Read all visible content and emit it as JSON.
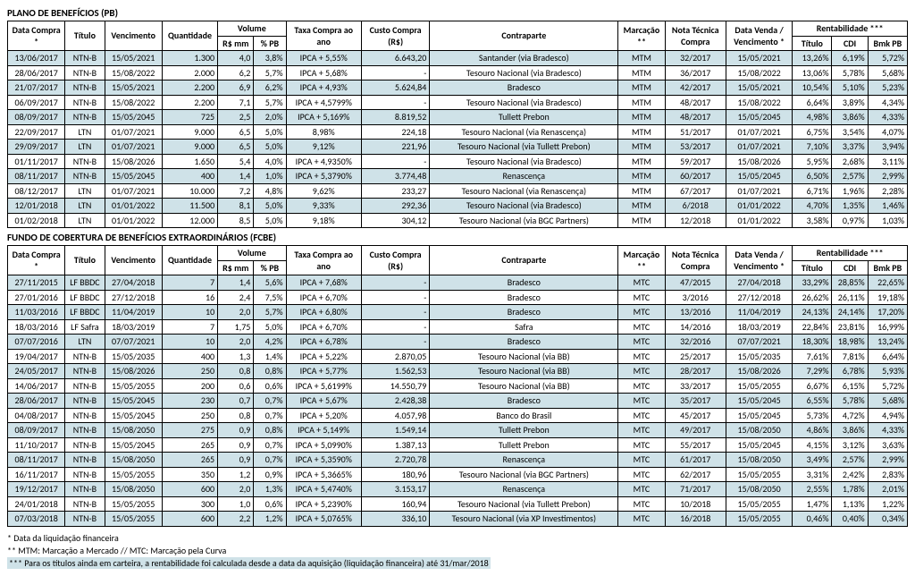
{
  "colors": {
    "row_alt_bg": "#cfe2e8",
    "border": "#000000",
    "background": "#ffffff",
    "text": "#000000"
  },
  "sections": [
    {
      "title": "PLANO DE BENEFÍCIOS (PB)",
      "columns": [
        {
          "key": "data_compra",
          "label": "Data Compra *",
          "rowspan": 2,
          "width": "64"
        },
        {
          "key": "titulo",
          "label": "Título",
          "rowspan": 2,
          "width": "44"
        },
        {
          "key": "vencimento",
          "label": "Vencimento",
          "rowspan": 2,
          "width": "64"
        },
        {
          "key": "quantidade",
          "label": "Quantidade",
          "rowspan": 2,
          "width": "62"
        },
        {
          "key": "volume",
          "label": "Volume",
          "colspan": 2,
          "children": [
            {
              "key": "rs_mm",
              "label": "R$ mm",
              "width": "40"
            },
            {
              "key": "pct_pb",
              "label": "% PB",
              "width": "36"
            }
          ]
        },
        {
          "key": "taxa_compra",
          "label": "Taxa Compra ao ano",
          "rowspan": 2,
          "width": "84"
        },
        {
          "key": "custo_compra",
          "label": "Custo Compra (R$)",
          "rowspan": 2,
          "width": "76"
        },
        {
          "key": "contraparte",
          "label": "Contraparte",
          "rowspan": 2,
          "width": "210"
        },
        {
          "key": "marcacao",
          "label": "Marcação **",
          "rowspan": 2,
          "width": "52"
        },
        {
          "key": "nota_tecnica",
          "label": "Nota Técnica Compra",
          "rowspan": 2,
          "width": "68"
        },
        {
          "key": "data_venda",
          "label": "Data Venda / Vencimento *",
          "rowspan": 2,
          "width": "74"
        },
        {
          "key": "rentabilidade",
          "label": "Rentabilidade ***",
          "colspan": 3,
          "children": [
            {
              "key": "r_titulo",
              "label": "Título",
              "width": "44"
            },
            {
              "key": "r_cdi",
              "label": "CDI",
              "width": "40"
            },
            {
              "key": "r_bmk",
              "label": "Bmk PB",
              "width": "44"
            }
          ]
        }
      ],
      "rows": [
        [
          "13/06/2017",
          "NTN-B",
          "15/05/2021",
          "1.300",
          "4,0",
          "3,8%",
          "IPCA + 5,55%",
          "6.643,20",
          "Santander (via Bradesco)",
          "MTM",
          "32/2017",
          "15/05/2021",
          "13,26%",
          "6,19%",
          "5,72%"
        ],
        [
          "28/06/2017",
          "NTN-B",
          "15/08/2022",
          "2.000",
          "6,2",
          "5,7%",
          "IPCA + 5,68%",
          "-",
          "Tesouro Nacional (via Bradesco)",
          "MTM",
          "36/2017",
          "15/08/2022",
          "13,06%",
          "5,78%",
          "5,68%"
        ],
        [
          "21/07/2017",
          "NTN-B",
          "15/05/2021",
          "2.200",
          "6,9",
          "6,2%",
          "IPCA + 4,93%",
          "5.624,84",
          "Bradesco",
          "MTM",
          "42/2017",
          "15/05/2021",
          "10,54%",
          "5,10%",
          "5,23%"
        ],
        [
          "06/09/2017",
          "NTN-B",
          "15/08/2022",
          "2.200",
          "7,1",
          "5,7%",
          "IPCA + 4,5799%",
          "-",
          "Tesouro Nacional (via Bradesco)",
          "MTM",
          "48/2017",
          "15/08/2022",
          "6,64%",
          "3,89%",
          "4,34%"
        ],
        [
          "08/09/2017",
          "NTN-B",
          "15/05/2045",
          "725",
          "2,5",
          "2,0%",
          "IPCA + 5,169%",
          "8.819,52",
          "Tullett Prebon",
          "MTM",
          "48/2017",
          "15/05/2045",
          "4,98%",
          "3,86%",
          "4,33%"
        ],
        [
          "22/09/2017",
          "LTN",
          "01/07/2021",
          "9.000",
          "6,5",
          "5,0%",
          "8,98%",
          "224,18",
          "Tesouro Nacional (via Renascença)",
          "MTM",
          "51/2017",
          "01/07/2021",
          "6,75%",
          "3,54%",
          "4,07%"
        ],
        [
          "29/09/2017",
          "LTN",
          "01/07/2021",
          "9.000",
          "6,5",
          "5,0%",
          "9,12%",
          "221,96",
          "Tesouro Nacional (via Tullett Prebon)",
          "MTM",
          "53/2017",
          "01/07/2021",
          "7,10%",
          "3,37%",
          "3,94%"
        ],
        [
          "01/11/2017",
          "NTN-B",
          "15/08/2026",
          "1.650",
          "5,4",
          "4,0%",
          "IPCA + 4,9350%",
          "-",
          "Tesouro Nacional (via Bradesco)",
          "MTM",
          "59/2017",
          "15/08/2026",
          "5,95%",
          "2,68%",
          "3,11%"
        ],
        [
          "08/11/2017",
          "NTN-B",
          "15/05/2045",
          "400",
          "1,4",
          "1,0%",
          "IPCA + 5,3790%",
          "3.774,48",
          "Renascença",
          "MTM",
          "60/2017",
          "15/05/2045",
          "6,50%",
          "2,57%",
          "2,99%"
        ],
        [
          "08/12/2017",
          "LTN",
          "01/07/2021",
          "10.000",
          "7,2",
          "4,8%",
          "9,62%",
          "233,27",
          "Tesouro Nacional (via Renascença)",
          "MTM",
          "67/2017",
          "01/07/2021",
          "6,71%",
          "1,96%",
          "2,28%"
        ],
        [
          "12/01/2018",
          "LTN",
          "01/01/2022",
          "11.500",
          "8,1",
          "5,0%",
          "9,33%",
          "292,36",
          "Tesouro Nacional (via Bradesco)",
          "MTM",
          "6/2018",
          "01/01/2022",
          "4,70%",
          "1,35%",
          "1,46%"
        ],
        [
          "01/02/2018",
          "LTN",
          "01/01/2022",
          "12.000",
          "8,5",
          "5,0%",
          "9,18%",
          "304,12",
          "Tesouro Nacional (via BGC Partners)",
          "MTM",
          "12/2018",
          "01/01/2022",
          "3,58%",
          "0,97%",
          "1,03%"
        ]
      ]
    },
    {
      "title": "FUNDO DE COBERTURA DE BENEFÍCIOS EXTRAORDINÁRIOS (FCBE)",
      "columns": [
        {
          "key": "data_compra",
          "label": "Data Compra *",
          "rowspan": 2,
          "width": "64"
        },
        {
          "key": "titulo",
          "label": "Título",
          "rowspan": 2,
          "width": "44"
        },
        {
          "key": "vencimento",
          "label": "Vencimento",
          "rowspan": 2,
          "width": "64"
        },
        {
          "key": "quantidade",
          "label": "Quantidade",
          "rowspan": 2,
          "width": "62"
        },
        {
          "key": "volume",
          "label": "Volume",
          "colspan": 2,
          "children": [
            {
              "key": "rs_mm",
              "label": "R$ mm",
              "width": "40"
            },
            {
              "key": "pct_pb",
              "label": "% PB",
              "width": "36"
            }
          ]
        },
        {
          "key": "taxa_compra",
          "label": "Taxa Compra ao ano",
          "rowspan": 2,
          "width": "84"
        },
        {
          "key": "custo_compra",
          "label": "Custo Compra (R$)",
          "rowspan": 2,
          "width": "76"
        },
        {
          "key": "contraparte",
          "label": "Contraparte",
          "rowspan": 2,
          "width": "210"
        },
        {
          "key": "marcacao",
          "label": "Marcação **",
          "rowspan": 2,
          "width": "52"
        },
        {
          "key": "nota_tecnica",
          "label": "Nota Técnica Compra",
          "rowspan": 2,
          "width": "68"
        },
        {
          "key": "data_venda",
          "label": "Data Venda / Vencimento *",
          "rowspan": 2,
          "width": "74"
        },
        {
          "key": "rentabilidade",
          "label": "Rentabilidade ***",
          "colspan": 3,
          "children": [
            {
              "key": "r_titulo",
              "label": "Título",
              "width": "44"
            },
            {
              "key": "r_cdi",
              "label": "CDI",
              "width": "40"
            },
            {
              "key": "r_bmk",
              "label": "Bmk PB",
              "width": "44"
            }
          ]
        }
      ],
      "rows": [
        [
          "27/11/2015",
          "LF BBDC",
          "27/04/2018",
          "7",
          "1,4",
          "5,6%",
          "IPCA + 7,68%",
          "-",
          "Bradesco",
          "MTC",
          "47/2015",
          "27/04/2018",
          "33,29%",
          "28,85%",
          "22,65%"
        ],
        [
          "27/01/2016",
          "LF BBDC",
          "27/12/2018",
          "16",
          "2,4",
          "7,5%",
          "IPCA + 6,70%",
          "-",
          "Bradesco",
          "MTC",
          "3/2016",
          "27/12/2018",
          "26,62%",
          "26,11%",
          "19,18%"
        ],
        [
          "11/03/2016",
          "LF BBDC",
          "11/04/2019",
          "10",
          "2,0",
          "5,7%",
          "IPCA + 6,80%",
          "-",
          "Bradesco",
          "MTC",
          "13/2016",
          "11/04/2019",
          "24,13%",
          "24,14%",
          "17,20%"
        ],
        [
          "18/03/2016",
          "LF Safra",
          "18/03/2019",
          "7",
          "1,75",
          "5,0%",
          "IPCA + 6,70%",
          "-",
          "Safra",
          "MTC",
          "14/2016",
          "18/03/2019",
          "22,84%",
          "23,81%",
          "16,99%"
        ],
        [
          "07/07/2016",
          "LTN",
          "07/07/2021",
          "10",
          "2,0",
          "4,2%",
          "IPCA + 6,78%",
          "-",
          "Bradesco",
          "MTC",
          "32/2016",
          "07/07/2021",
          "18,30%",
          "18,98%",
          "13,24%"
        ],
        [
          "19/04/2017",
          "NTN-B",
          "15/05/2035",
          "400",
          "1,3",
          "1,4%",
          "IPCA + 5,22%",
          "2.870,05",
          "Tesouro Nacional (via BB)",
          "MTC",
          "25/2017",
          "15/05/2035",
          "7,61%",
          "7,81%",
          "6,64%"
        ],
        [
          "24/05/2017",
          "NTN-B",
          "15/08/2026",
          "250",
          "0,8",
          "0,8%",
          "IPCA + 5,77%",
          "1.562,53",
          "Tesouro Nacional (via BB)",
          "MTC",
          "28/2017",
          "15/08/2026",
          "7,29%",
          "6,78%",
          "5,93%"
        ],
        [
          "14/06/2017",
          "NTN-B",
          "15/05/2055",
          "200",
          "0,6",
          "0,6%",
          "IPCA + 5,6199%",
          "14.550,79",
          "Tesouro Nacional (via BB)",
          "MTC",
          "33/2017",
          "15/05/2055",
          "6,67%",
          "6,15%",
          "5,72%"
        ],
        [
          "28/06/2017",
          "NTN-B",
          "15/05/2045",
          "230",
          "0,7",
          "0,7%",
          "IPCA + 5,67%",
          "2.428,38",
          "Bradesco",
          "MTC",
          "35/2017",
          "15/05/2045",
          "6,55%",
          "5,78%",
          "5,68%"
        ],
        [
          "04/08/2017",
          "NTN-B",
          "15/05/2045",
          "250",
          "0,8",
          "0,7%",
          "IPCA + 5,20%",
          "4.057,98",
          "Banco do Brasil",
          "MTC",
          "45/2017",
          "15/05/2045",
          "5,73%",
          "4,72%",
          "4,94%"
        ],
        [
          "08/09/2017",
          "NTN-B",
          "15/08/2050",
          "275",
          "0,9",
          "0,8%",
          "IPCA + 5,149%",
          "1.549,14",
          "Tullett Prebon",
          "MTC",
          "49/2017",
          "15/08/2050",
          "4,86%",
          "3,86%",
          "4,33%"
        ],
        [
          "11/10/2017",
          "NTN-B",
          "15/05/2045",
          "265",
          "0,9",
          "0,7%",
          "IPCA + 5,0990%",
          "1.387,13",
          "Tullett Prebon",
          "MTC",
          "55/2017",
          "15/05/2045",
          "4,15%",
          "3,12%",
          "3,63%"
        ],
        [
          "08/11/2017",
          "NTN-B",
          "15/08/2050",
          "265",
          "0,9",
          "0,7%",
          "IPCA + 5,3590%",
          "2.720,78",
          "Renascença",
          "MTC",
          "61/2017",
          "15/08/2050",
          "3,49%",
          "2,57%",
          "2,99%"
        ],
        [
          "16/11/2017",
          "NTN-B",
          "15/05/2055",
          "350",
          "1,2",
          "0,9%",
          "IPCA + 5,3665%",
          "180,96",
          "Tesouro Nacional (via BGC Partners)",
          "MTC",
          "62/2017",
          "15/05/2055",
          "3,31%",
          "2,42%",
          "2,83%"
        ],
        [
          "19/12/2017",
          "NTN-B",
          "15/08/2050",
          "600",
          "2,0",
          "1,3%",
          "IPCA + 5,4740%",
          "3.153,17",
          "Renascença",
          "MTC",
          "71/2017",
          "15/08/2050",
          "2,55%",
          "1,78%",
          "2,01%"
        ],
        [
          "24/01/2018",
          "NTN-B",
          "15/05/2055",
          "300",
          "1,0",
          "0,6%",
          "IPCA + 5,2390%",
          "160,94",
          "Tesouro Nacional (via Tullett Prebon)",
          "MTC",
          "10/2018",
          "15/05/2055",
          "1,47%",
          "1,13%",
          "1,22%"
        ],
        [
          "07/03/2018",
          "NTN-B",
          "15/05/2055",
          "600",
          "2,2",
          "1,2%",
          "IPCA + 5,0765%",
          "336,10",
          "Tesouro Nacional (via XP Investimentos)",
          "MTC",
          "16/2018",
          "15/05/2055",
          "0,46%",
          "0,40%",
          "0,34%"
        ]
      ]
    }
  ],
  "footnotes": [
    "* Data da liquidação financeira",
    "** MTM: Marcação a Mercado // MTC: Marcação pela Curva",
    "*** Para os títulos ainda em carteira, a rentabilidade foi calculada desde a data da aquisição (liquidação financeira) até 31/mar/2018"
  ],
  "cell_align": {
    "3": "right",
    "4": "right",
    "5": "right",
    "7": "right",
    "12": "right",
    "13": "right",
    "14": "right"
  }
}
